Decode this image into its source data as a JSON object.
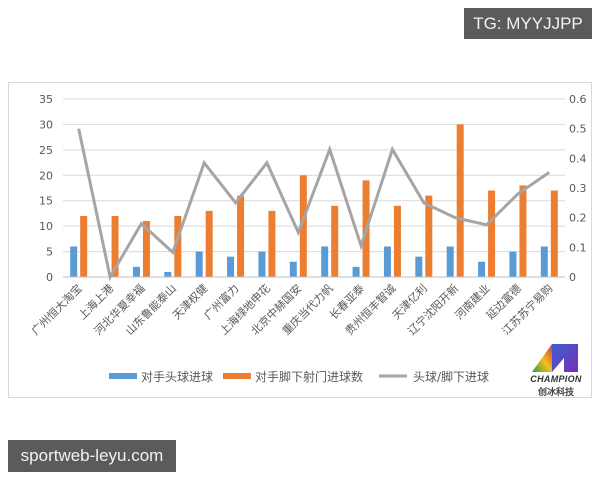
{
  "watermarks": {
    "top_right": "TG: MYYJJPP",
    "bottom_left": "sportweb-leyu.com"
  },
  "logo": {
    "word": "CHAMPION",
    "chinese": "创冰科技"
  },
  "colors": {
    "series_blue": "#5b9bd5",
    "series_orange": "#ed7d31",
    "series_gray": "#a5a5a5",
    "grid": "#d9d9d9",
    "axis_text": "#595959"
  },
  "chart_data": {
    "type": "bar",
    "title": "",
    "xlabel": "",
    "ylabel": "",
    "categories": [
      "广州恒大淘宝",
      "上海上港",
      "河北华夏幸福",
      "山东鲁能泰山",
      "天津权健",
      "广州富力",
      "上海绿地申花",
      "北京中赫国安",
      "重庆当代力帆",
      "长春亚泰",
      "贵州恒丰智诚",
      "天津亿利",
      "辽宁沈阳开新",
      "河南建业",
      "延边富德",
      "江苏苏宁易购"
    ],
    "series": [
      {
        "name": "对手头球进球",
        "type": "bar",
        "axis": "left",
        "color": "#5b9bd5",
        "values": [
          6,
          0,
          2,
          1,
          5,
          4,
          5,
          3,
          6,
          2,
          6,
          4,
          6,
          3,
          5,
          6
        ]
      },
      {
        "name": "对手脚下射门进球数",
        "type": "bar",
        "axis": "left",
        "color": "#ed7d31",
        "values": [
          12,
          12,
          11,
          12,
          13,
          16,
          13,
          20,
          14,
          19,
          14,
          16,
          30,
          17,
          18,
          17
        ]
      },
      {
        "name": "头球/脚下进球",
        "type": "line",
        "axis": "right",
        "color": "#a5a5a5",
        "values": [
          0.5,
          0,
          0.18,
          0.083,
          0.385,
          0.25,
          0.385,
          0.15,
          0.43,
          0.105,
          0.43,
          0.25,
          0.2,
          0.176,
          0.28,
          0.353
        ]
      }
    ],
    "ylim": [
      0,
      35
    ],
    "yticks": [
      0,
      5,
      10,
      15,
      20,
      25,
      30,
      35
    ],
    "y2lim": [
      0,
      0.6
    ],
    "y2ticks": [
      "0",
      "0.1",
      "0.2",
      "0.3",
      "0.4",
      "0.5",
      "0.6"
    ],
    "grid": true,
    "legend_position": "bottom"
  }
}
